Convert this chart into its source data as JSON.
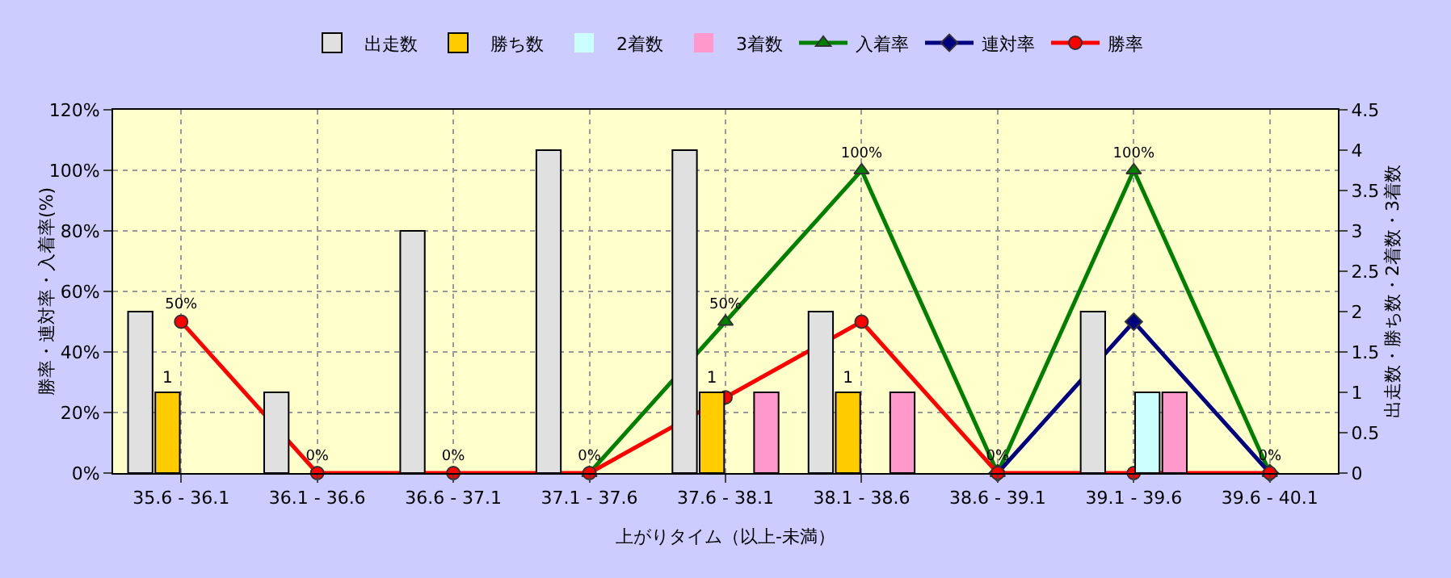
{
  "chart_data": {
    "type": "bar",
    "xlabel": "上がりタイム（以上-未満）",
    "ylabel": "勝率・連対率・入着率(%)",
    "y2label": "出走数・勝ち数・2着数・3着数",
    "categories": [
      "35.6 - 36.1",
      "36.1 - 36.6",
      "36.6 - 37.1",
      "37.1 - 37.6",
      "37.6 - 38.1",
      "38.1 - 38.6",
      "38.6 - 39.1",
      "39.1 - 39.6",
      "39.6 - 40.1"
    ],
    "series": [
      {
        "name": "出走数",
        "axis": "y2",
        "color": "#e0e0e0",
        "values": [
          2,
          1,
          3,
          4,
          4,
          2,
          0,
          2,
          0
        ]
      },
      {
        "name": "勝ち数",
        "axis": "y2",
        "color": "#ffcc00",
        "values": [
          1,
          0,
          0,
          0,
          1,
          1,
          0,
          0,
          0
        ],
        "value_labels": [
          "1",
          null,
          null,
          null,
          "1",
          "1",
          null,
          null,
          null
        ]
      },
      {
        "name": "2着数",
        "axis": "y2",
        "color": "#ccffff",
        "values": [
          0,
          0,
          0,
          0,
          0,
          0,
          0,
          1,
          0
        ]
      },
      {
        "name": "3着数",
        "axis": "y2",
        "color": "#ff99cc",
        "values": [
          0,
          0,
          0,
          0,
          1,
          1,
          0,
          1,
          0
        ]
      },
      {
        "name": "入着率",
        "type": "line",
        "marker": "triangle",
        "color": "#008000",
        "values": [
          null,
          null,
          null,
          0,
          50,
          100,
          0,
          100,
          0
        ],
        "value_labels": [
          null,
          null,
          null,
          null,
          "50%",
          "100%",
          null,
          "100%",
          null
        ]
      },
      {
        "name": "連対率",
        "type": "line",
        "marker": "diamond",
        "color": "#000080",
        "values": [
          null,
          null,
          null,
          null,
          null,
          null,
          0,
          50,
          0
        ]
      },
      {
        "name": "勝率",
        "type": "line",
        "marker": "circle",
        "color": "#ff0000",
        "values": [
          50,
          0,
          0,
          0,
          25,
          50,
          0,
          0,
          0
        ],
        "value_labels": [
          "50%",
          "0%",
          "0%",
          "0%",
          null,
          null,
          "0%",
          null,
          "0%"
        ]
      }
    ],
    "ylim": [
      0,
      120
    ],
    "yticks": [
      {
        "value": 0,
        "label": "0%"
      },
      {
        "value": 20,
        "label": "20%"
      },
      {
        "value": 40,
        "label": "40%"
      },
      {
        "value": 60,
        "label": "60%"
      },
      {
        "value": 80,
        "label": "80%"
      },
      {
        "value": 100,
        "label": "100%"
      },
      {
        "value": 120,
        "label": "120%"
      }
    ],
    "y2lim": [
      0,
      4.5
    ],
    "y2ticks": [
      0,
      0.5,
      1,
      1.5,
      2,
      2.5,
      3,
      3.5,
      4,
      4.5
    ],
    "grid": true,
    "legend": "top"
  }
}
